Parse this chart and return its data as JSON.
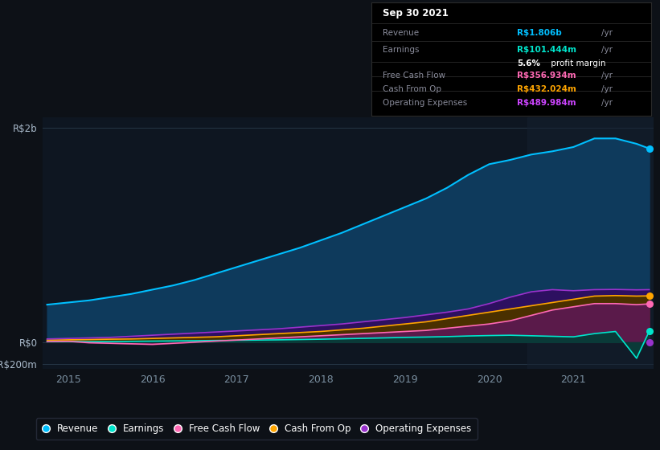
{
  "bg_color": "#0d1117",
  "chart_bg": "#0e1621",
  "years": [
    2014.75,
    2015.0,
    2015.25,
    2015.5,
    2015.75,
    2016.0,
    2016.25,
    2016.5,
    2016.75,
    2017.0,
    2017.25,
    2017.5,
    2017.75,
    2018.0,
    2018.25,
    2018.5,
    2018.75,
    2019.0,
    2019.25,
    2019.5,
    2019.75,
    2020.0,
    2020.25,
    2020.5,
    2020.75,
    2021.0,
    2021.25,
    2021.5,
    2021.75,
    2021.9
  ],
  "revenue": [
    350,
    370,
    390,
    420,
    450,
    490,
    530,
    580,
    640,
    700,
    760,
    820,
    880,
    950,
    1020,
    1100,
    1180,
    1260,
    1340,
    1440,
    1560,
    1660,
    1700,
    1750,
    1780,
    1820,
    1900,
    1900,
    1850,
    1806
  ],
  "earnings": [
    5,
    8,
    5,
    6,
    8,
    10,
    12,
    14,
    16,
    18,
    20,
    22,
    25,
    28,
    32,
    36,
    40,
    45,
    48,
    52,
    58,
    62,
    65,
    60,
    55,
    50,
    80,
    100,
    -150,
    101
  ],
  "free_cash_flow": [
    5,
    8,
    -5,
    -10,
    -15,
    -20,
    -10,
    0,
    10,
    20,
    30,
    40,
    50,
    60,
    70,
    80,
    90,
    100,
    110,
    130,
    150,
    170,
    200,
    250,
    300,
    330,
    360,
    360,
    350,
    357
  ],
  "cash_from_op": [
    20,
    22,
    25,
    28,
    30,
    35,
    40,
    45,
    50,
    60,
    70,
    80,
    90,
    100,
    115,
    130,
    150,
    170,
    190,
    220,
    250,
    280,
    310,
    340,
    370,
    400,
    430,
    435,
    430,
    432
  ],
  "operating_expenses": [
    30,
    35,
    40,
    45,
    55,
    65,
    75,
    85,
    95,
    105,
    115,
    125,
    140,
    155,
    170,
    190,
    210,
    230,
    255,
    280,
    310,
    360,
    420,
    470,
    490,
    480,
    490,
    492,
    488,
    490
  ],
  "revenue_color": "#00bfff",
  "earnings_color": "#00e5cc",
  "fcf_color": "#ff69b4",
  "cashop_color": "#ffa500",
  "opex_color": "#9932cc",
  "revenue_fill": "#0e3a5c",
  "earnings_fill": "#0a3a38",
  "fcf_fill": "#5a1a4a",
  "cashop_fill": "#4a3000",
  "opex_fill": "#2d1060",
  "ylim_min": -250,
  "ylim_max": 2100,
  "yticks": [
    -200,
    0,
    2000
  ],
  "ytick_labels": [
    "-R$200m",
    "R$0",
    "R$2b"
  ],
  "xlabel_color": "#7a8fa0",
  "xticks": [
    2015,
    2016,
    2017,
    2018,
    2019,
    2020,
    2021
  ],
  "info_box": {
    "date": "Sep 30 2021",
    "revenue_label": "Revenue",
    "revenue_value": "R$1.806b",
    "revenue_color": "#00bfff",
    "earnings_label": "Earnings",
    "earnings_value": "R$101.444m",
    "earnings_color": "#00e5cc",
    "profit_margin": "5.6%",
    "fcf_label": "Free Cash Flow",
    "fcf_value": "R$356.934m",
    "fcf_color": "#ff69b4",
    "cashop_label": "Cash From Op",
    "cashop_value": "R$432.024m",
    "cashop_color": "#ffa500",
    "opex_label": "Operating Expenses",
    "opex_value": "R$489.984m",
    "opex_color": "#cc44ff"
  },
  "legend_items": [
    {
      "label": "Revenue",
      "color": "#00bfff"
    },
    {
      "label": "Earnings",
      "color": "#00e5cc"
    },
    {
      "label": "Free Cash Flow",
      "color": "#ff69b4"
    },
    {
      "label": "Cash From Op",
      "color": "#ffa500"
    },
    {
      "label": "Operating Expenses",
      "color": "#9932cc"
    }
  ]
}
